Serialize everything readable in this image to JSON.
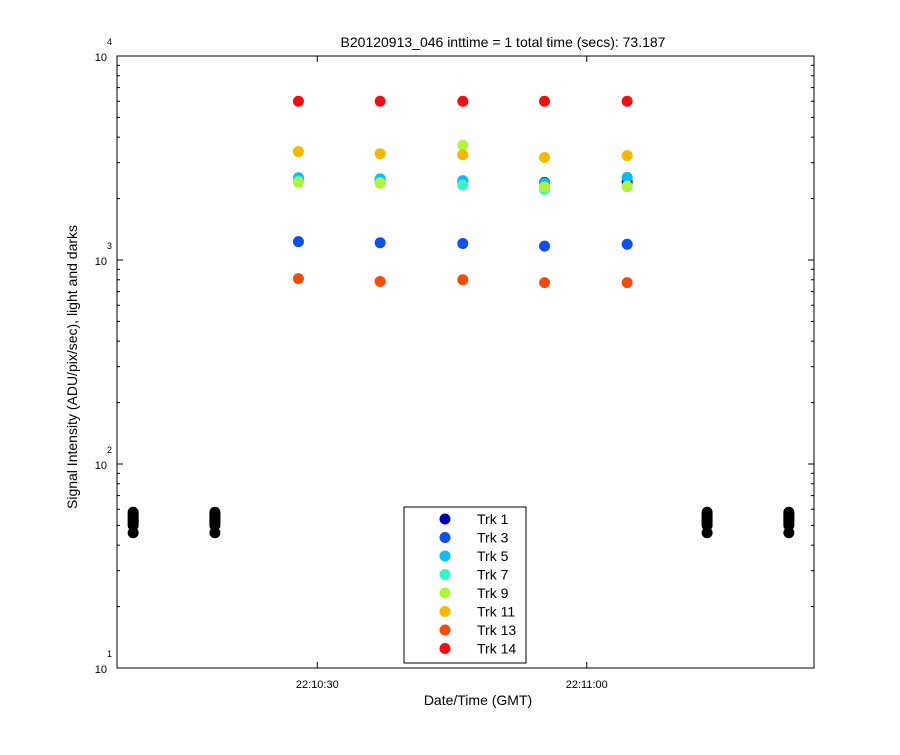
{
  "chart_data": {
    "type": "scatter",
    "title": "B20120913_046 inttime = 1 total time (secs): 73.187",
    "xlabel": "Date/Time (GMT)",
    "ylabel": "Signal Intensity (ADU/pix/sec), light and darks",
    "y_scale": "log",
    "ylim": [
      10,
      10000
    ],
    "y_ticks": [
      {
        "base": "10",
        "exp": "1"
      },
      {
        "base": "10",
        "exp": "2"
      },
      {
        "base": "10",
        "exp": "3"
      },
      {
        "base": "10",
        "exp": "4"
      }
    ],
    "x_ticks": [
      "22:10:30",
      "22:11:00"
    ],
    "x_tick_seconds": [
      30,
      60
    ],
    "xlim_seconds": [
      7.7,
      85.3
    ],
    "grid": false,
    "legend_position": "bottom-center",
    "light_times_seconds": [
      27.9,
      37.0,
      46.2,
      55.3,
      64.5
    ],
    "series": [
      {
        "name": "Trk 1",
        "color": "#0000b4",
        "values": [
          2500,
          2470,
          2430,
          2400,
          2420
        ]
      },
      {
        "name": "Trk 3",
        "color": "#0a4ff0",
        "values": [
          1230,
          1215,
          1205,
          1170,
          1195
        ]
      },
      {
        "name": "Trk 5",
        "color": "#08bdf5",
        "values": [
          2530,
          2500,
          2450,
          2380,
          2540
        ]
      },
      {
        "name": "Trk 7",
        "color": "#3af2c8",
        "values": [
          2440,
          2400,
          2330,
          2220,
          2290
        ]
      },
      {
        "name": "Trk 9",
        "color": "#b0f53c",
        "values": [
          2400,
          2380,
          3650,
          2280,
          2300
        ]
      },
      {
        "name": "Trk 11",
        "color": "#f5b800",
        "values": [
          3400,
          3320,
          3280,
          3180,
          3250
        ]
      },
      {
        "name": "Trk 13",
        "color": "#f24c08",
        "values": [
          810,
          785,
          800,
          775,
          775
        ]
      },
      {
        "name": "Trk 14",
        "color": "#ee1010",
        "values": [
          6000,
          6000,
          6000,
          6000,
          6000
        ]
      }
    ],
    "darks": {
      "color": "#000000",
      "times_seconds": [
        9.5,
        18.6,
        73.4,
        82.5
      ],
      "values": [
        46,
        50,
        51,
        52,
        53,
        54,
        55,
        56,
        57,
        58
      ]
    }
  }
}
